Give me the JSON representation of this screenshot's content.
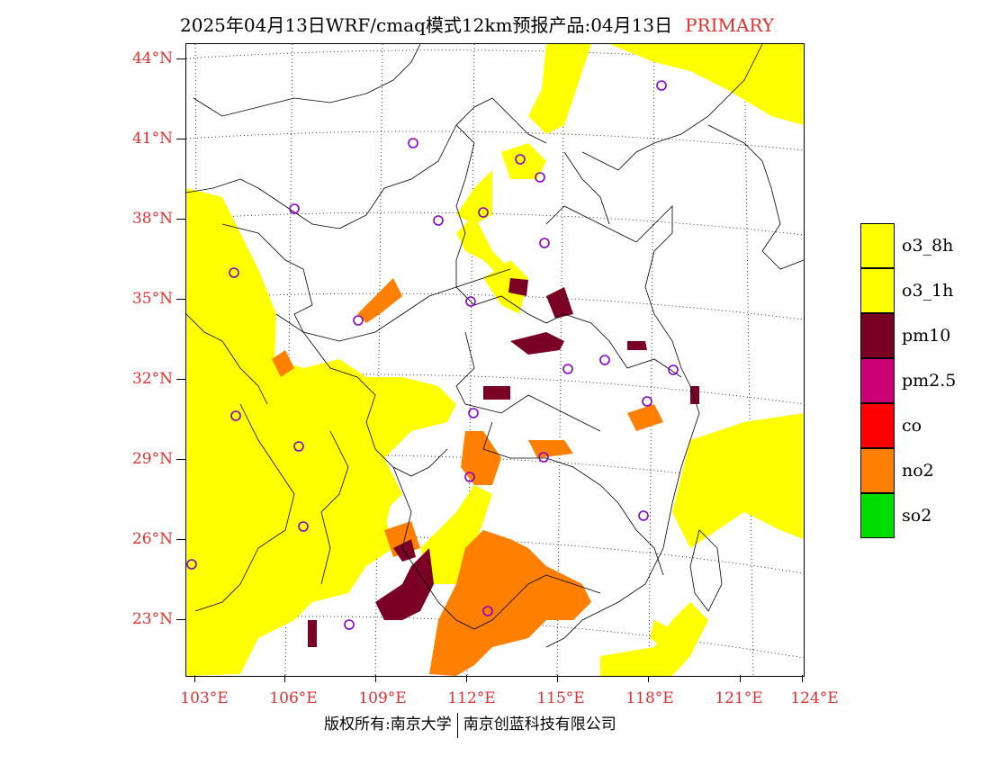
{
  "header": {
    "title": "2025年04月13日WRF/cmaq模式12km预报产品:04月13日",
    "tag": "PRIMARY"
  },
  "axes": {
    "lat_labels": [
      "44°N",
      "41°N",
      "38°N",
      "35°N",
      "32°N",
      "29°N",
      "26°N",
      "23°N"
    ],
    "lon_labels": [
      "103°E",
      "106°E",
      "109°E",
      "112°E",
      "115°E",
      "118°E",
      "121°E",
      "124°E"
    ]
  },
  "legend": {
    "items": [
      {
        "label": "o3_8h",
        "color": "#ffff00"
      },
      {
        "label": "o3_1h",
        "color": "#ffff00"
      },
      {
        "label": "pm10",
        "color": "#7a0026"
      },
      {
        "label": "pm2.5",
        "color": "#cc0077"
      },
      {
        "label": "co",
        "color": "#ff0000"
      },
      {
        "label": "no2",
        "color": "#ff7f00"
      },
      {
        "label": "so2",
        "color": "#00dd00"
      }
    ]
  },
  "footer": {
    "left": "版权所有:南京大学",
    "right": "南京创蓝科技有限公司"
  },
  "colors": {
    "axis_label": "#e03030",
    "station_marker": "#8800cc"
  }
}
